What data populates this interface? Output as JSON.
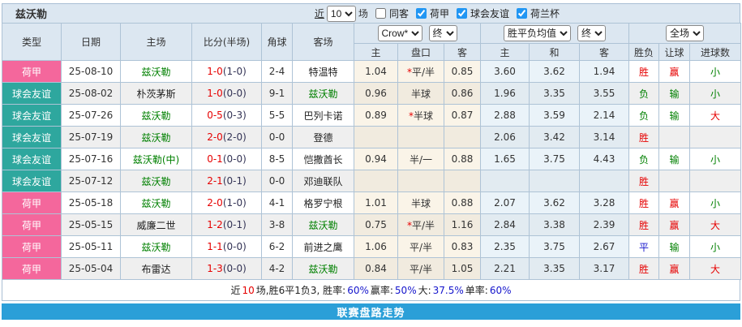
{
  "colors": {
    "pink": "#F4679C",
    "teal": "#2EA79E",
    "accent_blue": "#2B9FD8",
    "header_bg": "#DCE7F1"
  },
  "title_bar": {
    "team": "兹沃勒",
    "near": "近",
    "count": "10",
    "matches": "场",
    "checkboxes": [
      {
        "label": "同客",
        "checked": null
      },
      {
        "label": "荷甲",
        "checked": "checked"
      },
      {
        "label": "球会友谊",
        "checked": "checked"
      },
      {
        "label": "荷兰杯",
        "checked": "checked"
      }
    ]
  },
  "table": {
    "main_headers": [
      "类型",
      "日期",
      "主场",
      "比分(半场)",
      "角球",
      "客场"
    ],
    "dropdowns": {
      "bookmaker": "Crow*",
      "final1": "终",
      "avg": "胜平负均值",
      "final2": "终",
      "scope": "全场"
    },
    "sub_headers": [
      "主",
      "盘口",
      "客",
      "主",
      "和",
      "客",
      "胜负",
      "让球",
      "进球数"
    ],
    "rows": [
      {
        "type": "荷甲",
        "tc": "pink",
        "date": "25-08-10",
        "home": "兹沃勒",
        "hg": true,
        "ft": "1-0",
        "ht": "(1-0)",
        "corner": "2-4",
        "away": "特温特",
        "ag": false,
        "ah_home": "1.04",
        "handicap": "平/半",
        "star": true,
        "ah_away": "0.85",
        "eu_home": "3.60",
        "eu_draw": "3.62",
        "eu_away": "1.94",
        "result": "胜",
        "result_c": "red",
        "let": "赢",
        "let_c": "red",
        "goal": "小",
        "goal_c": "green"
      },
      {
        "type": "球会友谊",
        "tc": "teal",
        "date": "25-08-02",
        "home": "朴茨茅斯",
        "hg": false,
        "ft": "1-0",
        "ht": "(0-0)",
        "corner": "9-1",
        "away": "兹沃勒",
        "ag": true,
        "ah_home": "0.96",
        "handicap": "半球",
        "star": false,
        "ah_away": "0.86",
        "eu_home": "1.96",
        "eu_draw": "3.35",
        "eu_away": "3.55",
        "result": "负",
        "result_c": "green",
        "let": "输",
        "let_c": "green",
        "goal": "小",
        "goal_c": "green"
      },
      {
        "type": "球会友谊",
        "tc": "teal",
        "date": "25-07-26",
        "home": "兹沃勒",
        "hg": true,
        "ft": "0-5",
        "ht": "(0-3)",
        "corner": "5-5",
        "away": "巴列卡诺",
        "ag": false,
        "ah_home": "0.89",
        "handicap": "半球",
        "star": true,
        "ah_away": "0.87",
        "eu_home": "2.88",
        "eu_draw": "3.59",
        "eu_away": "2.14",
        "result": "负",
        "result_c": "green",
        "let": "输",
        "let_c": "green",
        "goal": "大",
        "goal_c": "red"
      },
      {
        "type": "球会友谊",
        "tc": "teal",
        "date": "25-07-19",
        "home": "兹沃勒",
        "hg": true,
        "ft": "2-0",
        "ht": "(2-0)",
        "corner": "0-0",
        "away": "登德",
        "ag": false,
        "ah_home": "",
        "handicap": "",
        "star": false,
        "ah_away": "",
        "eu_home": "2.06",
        "eu_draw": "3.42",
        "eu_away": "3.14",
        "result": "胜",
        "result_c": "red",
        "let": "",
        "let_c": "",
        "goal": "",
        "goal_c": ""
      },
      {
        "type": "球会友谊",
        "tc": "teal",
        "date": "25-07-16",
        "home": "兹沃勒(中)",
        "hg": true,
        "ft": "0-1",
        "ht": "(0-0)",
        "corner": "8-5",
        "away": "恺撒酋长",
        "ag": false,
        "ah_home": "0.94",
        "handicap": "半/一",
        "star": false,
        "ah_away": "0.88",
        "eu_home": "1.65",
        "eu_draw": "3.75",
        "eu_away": "4.43",
        "result": "负",
        "result_c": "green",
        "let": "输",
        "let_c": "green",
        "goal": "小",
        "goal_c": "green"
      },
      {
        "type": "球会友谊",
        "tc": "teal",
        "date": "25-07-12",
        "home": "兹沃勒",
        "hg": true,
        "ft": "2-1",
        "ht": "(0-1)",
        "corner": "0-0",
        "away": "邓迪联队",
        "ag": false,
        "ah_home": "",
        "handicap": "",
        "star": false,
        "ah_away": "",
        "eu_home": "",
        "eu_draw": "",
        "eu_away": "",
        "result": "胜",
        "result_c": "red",
        "let": "",
        "let_c": "",
        "goal": "",
        "goal_c": ""
      },
      {
        "type": "荷甲",
        "tc": "pink",
        "date": "25-05-18",
        "home": "兹沃勒",
        "hg": true,
        "ft": "2-0",
        "ht": "(1-0)",
        "corner": "4-1",
        "away": "格罗宁根",
        "ag": false,
        "ah_home": "1.01",
        "handicap": "半球",
        "star": false,
        "ah_away": "0.88",
        "eu_home": "2.07",
        "eu_draw": "3.62",
        "eu_away": "3.28",
        "result": "胜",
        "result_c": "red",
        "let": "赢",
        "let_c": "red",
        "goal": "小",
        "goal_c": "green"
      },
      {
        "type": "荷甲",
        "tc": "pink",
        "date": "25-05-15",
        "home": "威廉二世",
        "hg": false,
        "ft": "1-2",
        "ht": "(0-1)",
        "corner": "3-8",
        "away": "兹沃勒",
        "ag": true,
        "ah_home": "0.75",
        "handicap": "平/半",
        "star": true,
        "ah_away": "1.16",
        "eu_home": "2.84",
        "eu_draw": "3.38",
        "eu_away": "2.39",
        "result": "胜",
        "result_c": "red",
        "let": "赢",
        "let_c": "red",
        "goal": "大",
        "goal_c": "red"
      },
      {
        "type": "荷甲",
        "tc": "pink",
        "date": "25-05-11",
        "home": "兹沃勒",
        "hg": true,
        "ft": "1-1",
        "ht": "(0-0)",
        "corner": "6-2",
        "away": "前进之鹰",
        "ag": false,
        "ah_home": "1.06",
        "handicap": "平/半",
        "star": false,
        "ah_away": "0.83",
        "eu_home": "2.35",
        "eu_draw": "3.75",
        "eu_away": "2.67",
        "result": "平",
        "result_c": "blue",
        "let": "输",
        "let_c": "green",
        "goal": "小",
        "goal_c": "green"
      },
      {
        "type": "荷甲",
        "tc": "pink",
        "date": "25-05-04",
        "home": "布雷达",
        "hg": false,
        "ft": "1-3",
        "ht": "(0-0)",
        "corner": "4-2",
        "away": "兹沃勒",
        "ag": true,
        "ah_home": "0.84",
        "handicap": "平/半",
        "star": false,
        "ah_away": "1.05",
        "eu_home": "2.21",
        "eu_draw": "3.35",
        "eu_away": "3.17",
        "result": "胜",
        "result_c": "red",
        "let": "赢",
        "let_c": "red",
        "goal": "大",
        "goal_c": "red"
      }
    ]
  },
  "summary": {
    "segments": [
      {
        "text": "近",
        "c": ""
      },
      {
        "text": "10",
        "c": "red"
      },
      {
        "text": "场,胜6平1负3, 胜率:",
        "c": ""
      },
      {
        "text": "60%",
        "c": "blue"
      },
      {
        "text": " 赢率:",
        "c": ""
      },
      {
        "text": "50%",
        "c": "blue"
      },
      {
        "text": " 大:",
        "c": ""
      },
      {
        "text": "37.5%",
        "c": "blue"
      },
      {
        "text": " 单率:",
        "c": ""
      },
      {
        "text": "60%",
        "c": "blue"
      }
    ]
  },
  "footer": {
    "link": "联赛盘路走势"
  }
}
